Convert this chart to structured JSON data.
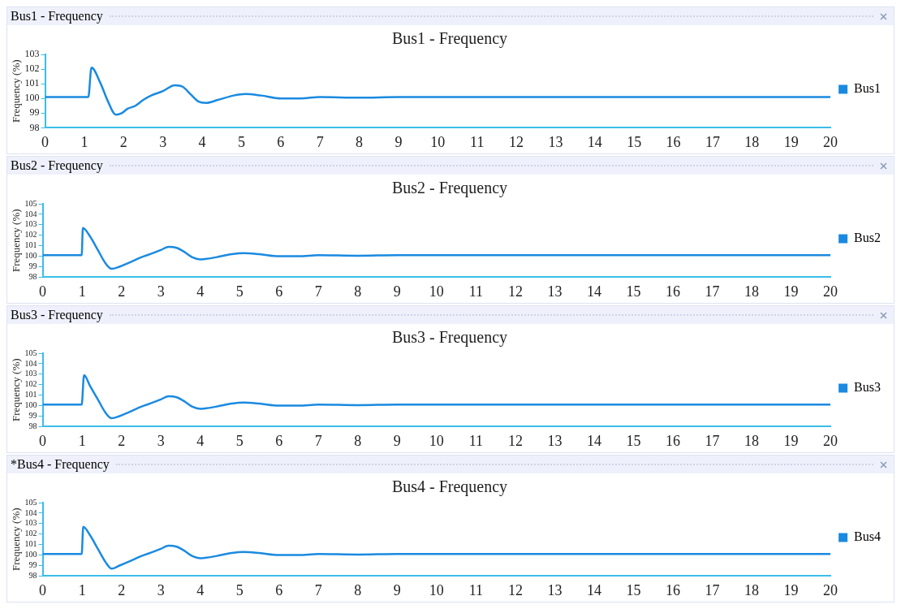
{
  "chart_data": [
    {
      "type": "line",
      "title": "Bus1 - Frequency",
      "annotations": [
        "Bus1 - Frequency"
      ],
      "ylabel": "Frequency (%)",
      "x": [
        0,
        0.5,
        1.1,
        1.18,
        1.4,
        1.6,
        1.8,
        1.95,
        2.1,
        2.3,
        2.5,
        2.7,
        3.0,
        3.3,
        3.5,
        3.7,
        3.9,
        4.1,
        4.4,
        4.8,
        5.1,
        5.5,
        6.0,
        6.5,
        7.0,
        8.0,
        9.0,
        10,
        12,
        14,
        16,
        18,
        20
      ],
      "series": [
        {
          "name": "Bus1",
          "color": "#1a8ae0",
          "values": [
            100.1,
            100.1,
            100.1,
            102.1,
            101.1,
            99.8,
            98.9,
            99.0,
            99.3,
            99.5,
            99.9,
            100.2,
            100.5,
            100.9,
            100.8,
            100.3,
            99.8,
            99.7,
            99.9,
            100.2,
            100.3,
            100.2,
            100.0,
            100.0,
            100.1,
            100.05,
            100.1,
            100.1,
            100.1,
            100.1,
            100.1,
            100.1,
            100.1
          ]
        }
      ],
      "xlim": [
        0,
        20
      ],
      "xticks": [
        0,
        1,
        2,
        3,
        4,
        5,
        6,
        7,
        8,
        9,
        10,
        11,
        12,
        13,
        14,
        15,
        16,
        17,
        18,
        19,
        20
      ],
      "ylim": [
        98,
        103
      ],
      "yticks": [
        98,
        99,
        100,
        101,
        102,
        103
      ],
      "legend": "right",
      "grid": false,
      "marker": "none"
    },
    {
      "type": "line",
      "title": "Bus2 - Frequency",
      "annotations": [
        "Bus2 - Frequency"
      ],
      "ylabel": "Frequency (%)",
      "x": [
        0,
        0.5,
        0.99,
        1.02,
        1.2,
        1.4,
        1.6,
        1.75,
        1.95,
        2.2,
        2.5,
        2.8,
        3.0,
        3.2,
        3.4,
        3.6,
        3.8,
        4.0,
        4.4,
        4.8,
        5.1,
        5.5,
        6.0,
        6.5,
        7.0,
        8.0,
        9.0,
        10,
        12,
        14,
        16,
        18,
        20
      ],
      "series": [
        {
          "name": "Bus2",
          "color": "#1a8ae0",
          "values": [
            100.1,
            100.1,
            100.1,
            102.7,
            101.9,
            100.6,
            99.3,
            98.8,
            99.0,
            99.4,
            99.9,
            100.3,
            100.6,
            100.9,
            100.8,
            100.4,
            99.9,
            99.7,
            99.9,
            100.2,
            100.3,
            100.2,
            100.0,
            100.0,
            100.1,
            100.05,
            100.1,
            100.1,
            100.1,
            100.1,
            100.1,
            100.1,
            100.1
          ]
        }
      ],
      "xlim": [
        0,
        20
      ],
      "xticks": [
        0,
        1,
        2,
        3,
        4,
        5,
        6,
        7,
        8,
        9,
        10,
        11,
        12,
        13,
        14,
        15,
        16,
        17,
        18,
        19,
        20
      ],
      "ylim": [
        98,
        105
      ],
      "yticks": [
        98,
        99,
        100,
        101,
        102,
        103,
        104,
        105
      ],
      "legend": "right",
      "grid": false,
      "marker": "none"
    },
    {
      "type": "line",
      "title": "Bus3 - Frequency",
      "annotations": [
        "Bus3 - Frequency"
      ],
      "ylabel": "Frequency (%)",
      "x": [
        0,
        0.5,
        0.99,
        1.05,
        1.2,
        1.4,
        1.6,
        1.75,
        1.95,
        2.2,
        2.5,
        2.8,
        3.0,
        3.2,
        3.4,
        3.6,
        3.8,
        4.0,
        4.4,
        4.8,
        5.1,
        5.5,
        6.0,
        6.5,
        7.0,
        8.0,
        9.0,
        10,
        12,
        14,
        16,
        18,
        20
      ],
      "series": [
        {
          "name": "Bus3",
          "color": "#1a8ae0",
          "values": [
            100.1,
            100.1,
            100.1,
            102.9,
            101.9,
            100.6,
            99.3,
            98.8,
            99.0,
            99.4,
            99.9,
            100.3,
            100.6,
            100.9,
            100.8,
            100.4,
            99.9,
            99.7,
            99.9,
            100.2,
            100.3,
            100.2,
            100.0,
            100.0,
            100.1,
            100.05,
            100.1,
            100.1,
            100.1,
            100.1,
            100.1,
            100.1,
            100.1
          ]
        }
      ],
      "xlim": [
        0,
        20
      ],
      "xticks": [
        0,
        1,
        2,
        3,
        4,
        5,
        6,
        7,
        8,
        9,
        10,
        11,
        12,
        13,
        14,
        15,
        16,
        17,
        18,
        19,
        20
      ],
      "ylim": [
        98,
        105
      ],
      "yticks": [
        98,
        99,
        100,
        101,
        102,
        103,
        104,
        105
      ],
      "legend": "right",
      "grid": false,
      "marker": "none"
    },
    {
      "type": "line",
      "title": "Bus4 - Frequency",
      "annotations": [
        "*Bus4 - Frequency"
      ],
      "ylabel": "Frequency (%)",
      "x": [
        0,
        0.5,
        0.99,
        1.03,
        1.2,
        1.4,
        1.6,
        1.75,
        1.95,
        2.2,
        2.5,
        2.8,
        3.0,
        3.2,
        3.4,
        3.6,
        3.8,
        4.0,
        4.4,
        4.8,
        5.1,
        5.5,
        6.0,
        6.5,
        7.0,
        8.0,
        9.0,
        10,
        12,
        14,
        16,
        18,
        20
      ],
      "series": [
        {
          "name": "Bus4",
          "color": "#1a8ae0",
          "values": [
            100.1,
            100.1,
            100.1,
            102.7,
            101.9,
            100.6,
            99.3,
            98.7,
            99.0,
            99.4,
            99.9,
            100.3,
            100.6,
            100.9,
            100.8,
            100.4,
            99.9,
            99.7,
            99.9,
            100.2,
            100.3,
            100.2,
            100.0,
            100.0,
            100.1,
            100.05,
            100.1,
            100.1,
            100.1,
            100.1,
            100.1,
            100.1,
            100.1
          ]
        }
      ],
      "xlim": [
        0,
        20
      ],
      "xticks": [
        0,
        1,
        2,
        3,
        4,
        5,
        6,
        7,
        8,
        9,
        10,
        11,
        12,
        13,
        14,
        15,
        16,
        17,
        18,
        19,
        20
      ],
      "ylim": [
        98,
        105
      ],
      "yticks": [
        98,
        99,
        100,
        101,
        102,
        103,
        104,
        105
      ],
      "legend": "right",
      "grid": false,
      "marker": "none"
    }
  ]
}
